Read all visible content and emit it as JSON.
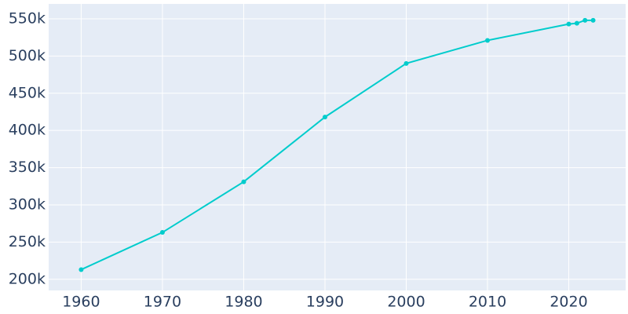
{
  "chart_data": {
    "type": "line",
    "x": [
      1960,
      1970,
      1980,
      1990,
      2000,
      2010,
      2020,
      2021,
      2022,
      2023
    ],
    "series": [
      {
        "color": "#00cccc",
        "values": [
          213000,
          263000,
          331000,
          418000,
          490000,
          521000,
          543000,
          544000,
          548000,
          548000
        ]
      }
    ],
    "xlim": [
      1956,
      2027
    ],
    "xticks": [
      1960,
      1970,
      1980,
      1990,
      2000,
      2010,
      2020
    ],
    "ylim": [
      185000,
      570000
    ],
    "yticks": [
      {
        "value": 200000,
        "label": "200k"
      },
      {
        "value": 250000,
        "label": "250k"
      },
      {
        "value": 300000,
        "label": "300k"
      },
      {
        "value": 350000,
        "label": "350k"
      },
      {
        "value": 400000,
        "label": "400k"
      },
      {
        "value": 450000,
        "label": "450k"
      },
      {
        "value": 500000,
        "label": "500k"
      },
      {
        "value": 550000,
        "label": "550k"
      }
    ],
    "grid": true
  }
}
